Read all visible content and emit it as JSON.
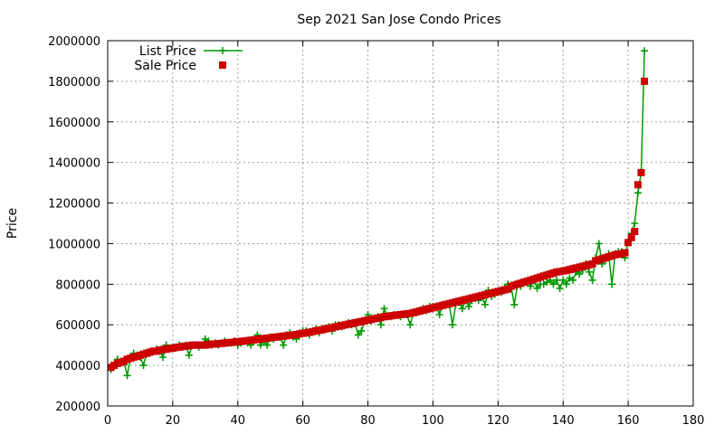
{
  "chart_data": {
    "type": "line",
    "title": "Sep 2021 San Jose Condo Prices",
    "xlabel": "",
    "ylabel": "Price",
    "xlim": [
      0,
      180
    ],
    "ylim": [
      200000,
      2000000
    ],
    "xticks": [
      "0",
      "20",
      "40",
      "60",
      "80",
      "100",
      "120",
      "140",
      "160",
      "180"
    ],
    "yticks": [
      "200000",
      "400000",
      "600000",
      "800000",
      "1000000",
      "1200000",
      "1400000",
      "1600000",
      "1800000",
      "2000000"
    ],
    "grid": true,
    "legend_position": "top-left",
    "series": [
      {
        "name": "List Price",
        "style": "line-with-plus-markers",
        "color": "#009900",
        "x": [
          1,
          2,
          3,
          4,
          5,
          6,
          7,
          8,
          9,
          10,
          11,
          12,
          13,
          14,
          15,
          16,
          17,
          18,
          19,
          20,
          21,
          22,
          23,
          24,
          25,
          26,
          27,
          28,
          29,
          30,
          31,
          32,
          33,
          34,
          35,
          36,
          37,
          38,
          39,
          40,
          41,
          42,
          43,
          44,
          45,
          46,
          47,
          48,
          49,
          50,
          51,
          52,
          53,
          54,
          55,
          56,
          57,
          58,
          59,
          60,
          61,
          62,
          63,
          64,
          65,
          66,
          67,
          68,
          69,
          70,
          71,
          72,
          73,
          74,
          75,
          76,
          77,
          78,
          79,
          80,
          81,
          82,
          83,
          84,
          85,
          86,
          87,
          88,
          89,
          90,
          91,
          92,
          93,
          94,
          95,
          96,
          97,
          98,
          99,
          100,
          101,
          102,
          103,
          104,
          105,
          106,
          107,
          108,
          109,
          110,
          111,
          112,
          113,
          114,
          115,
          116,
          117,
          118,
          119,
          120,
          121,
          122,
          123,
          124,
          125,
          126,
          127,
          128,
          129,
          130,
          131,
          132,
          133,
          134,
          135,
          136,
          137,
          138,
          139,
          140,
          141,
          142,
          143,
          144,
          145,
          146,
          147,
          148,
          149,
          150,
          151,
          152,
          153,
          154,
          155,
          156,
          157,
          158,
          159,
          160,
          161,
          162,
          163,
          164,
          165
        ],
        "y": [
          380000,
          400000,
          430000,
          410000,
          420000,
          350000,
          440000,
          460000,
          450000,
          440000,
          400000,
          460000,
          460000,
          470000,
          480000,
          470000,
          440000,
          500000,
          480000,
          490000,
          490000,
          500000,
          490000,
          500000,
          450000,
          500000,
          500000,
          490000,
          500000,
          530000,
          520000,
          500000,
          510000,
          500000,
          510000,
          520000,
          510000,
          510000,
          520000,
          500000,
          510000,
          520000,
          510000,
          500000,
          520000,
          550000,
          500000,
          520000,
          500000,
          540000,
          530000,
          540000,
          540000,
          500000,
          550000,
          560000,
          540000,
          530000,
          560000,
          570000,
          570000,
          550000,
          570000,
          580000,
          560000,
          580000,
          580000,
          590000,
          570000,
          600000,
          600000,
          590000,
          600000,
          610000,
          600000,
          610000,
          550000,
          570000,
          620000,
          650000,
          620000,
          630000,
          640000,
          600000,
          680000,
          640000,
          640000,
          650000,
          650000,
          640000,
          650000,
          650000,
          600000,
          660000,
          660000,
          670000,
          680000,
          670000,
          690000,
          690000,
          690000,
          650000,
          700000,
          700000,
          700000,
          600000,
          700000,
          710000,
          680000,
          720000,
          690000,
          720000,
          730000,
          720000,
          740000,
          700000,
          770000,
          740000,
          750000,
          760000,
          760000,
          780000,
          800000,
          790000,
          700000,
          800000,
          790000,
          810000,
          810000,
          790000,
          820000,
          780000,
          800000,
          800000,
          810000,
          820000,
          800000,
          820000,
          780000,
          820000,
          800000,
          830000,
          820000,
          860000,
          850000,
          870000,
          900000,
          860000,
          820000,
          930000,
          1000000,
          900000,
          920000,
          950000,
          800000,
          950000,
          960000,
          960000,
          930000,
          1010000,
          1050000,
          1100000,
          1250000,
          1350000,
          1950000
        ]
      },
      {
        "name": "Sale Price",
        "style": "square-markers",
        "color": "#cc0000",
        "x": [
          1,
          2,
          3,
          4,
          5,
          6,
          7,
          8,
          9,
          10,
          11,
          12,
          13,
          14,
          15,
          16,
          17,
          18,
          19,
          20,
          21,
          22,
          23,
          24,
          25,
          26,
          27,
          28,
          29,
          30,
          31,
          32,
          33,
          34,
          35,
          36,
          37,
          38,
          39,
          40,
          41,
          42,
          43,
          44,
          45,
          46,
          47,
          48,
          49,
          50,
          51,
          52,
          53,
          54,
          55,
          56,
          57,
          58,
          59,
          60,
          61,
          62,
          63,
          64,
          65,
          66,
          67,
          68,
          69,
          70,
          71,
          72,
          73,
          74,
          75,
          76,
          77,
          78,
          79,
          80,
          81,
          82,
          83,
          84,
          85,
          86,
          87,
          88,
          89,
          90,
          91,
          92,
          93,
          94,
          95,
          96,
          97,
          98,
          99,
          100,
          101,
          102,
          103,
          104,
          105,
          106,
          107,
          108,
          109,
          110,
          111,
          112,
          113,
          114,
          115,
          116,
          117,
          118,
          119,
          120,
          121,
          122,
          123,
          124,
          125,
          126,
          127,
          128,
          129,
          130,
          131,
          132,
          133,
          134,
          135,
          136,
          137,
          138,
          139,
          140,
          141,
          142,
          143,
          144,
          145,
          146,
          147,
          148,
          149,
          150,
          151,
          152,
          153,
          154,
          155,
          156,
          157,
          158,
          159,
          160,
          161,
          162,
          163,
          164,
          165
        ],
        "y": [
          390000,
          400000,
          410000,
          415000,
          420000,
          430000,
          435000,
          440000,
          445000,
          450000,
          455000,
          460000,
          465000,
          470000,
          470000,
          475000,
          478000,
          480000,
          483000,
          485000,
          488000,
          490000,
          493000,
          495000,
          497000,
          500000,
          500000,
          500000,
          500000,
          500000,
          502000,
          505000,
          505000,
          507000,
          508000,
          510000,
          512000,
          513000,
          515000,
          517000,
          518000,
          520000,
          522000,
          524000,
          526000,
          528000,
          530000,
          532000,
          534000,
          536000,
          538000,
          540000,
          542000,
          544000,
          546000,
          548000,
          550000,
          552000,
          555000,
          558000,
          560000,
          563000,
          566000,
          570000,
          573000,
          576000,
          580000,
          583000,
          586000,
          590000,
          593000,
          596000,
          600000,
          603000,
          606000,
          610000,
          613000,
          616000,
          620000,
          623000,
          626000,
          630000,
          633000,
          636000,
          640000,
          642000,
          644000,
          646000,
          648000,
          650000,
          652000,
          654000,
          656000,
          660000,
          664000,
          668000,
          672000,
          676000,
          680000,
          684000,
          688000,
          692000,
          696000,
          700000,
          704000,
          708000,
          712000,
          716000,
          720000,
          724000,
          728000,
          732000,
          736000,
          740000,
          744000,
          748000,
          752000,
          756000,
          760000,
          764000,
          768000,
          772000,
          776000,
          790000,
          795000,
          800000,
          805000,
          810000,
          815000,
          820000,
          825000,
          830000,
          835000,
          840000,
          845000,
          850000,
          855000,
          860000,
          862000,
          865000,
          868000,
          872000,
          876000,
          880000,
          884000,
          888000,
          892000,
          896000,
          900000,
          915000,
          920000,
          925000,
          930000,
          935000,
          940000,
          945000,
          948000,
          950000,
          955000,
          1005000,
          1030000,
          1060000,
          1290000,
          1350000,
          1800000
        ]
      }
    ]
  }
}
